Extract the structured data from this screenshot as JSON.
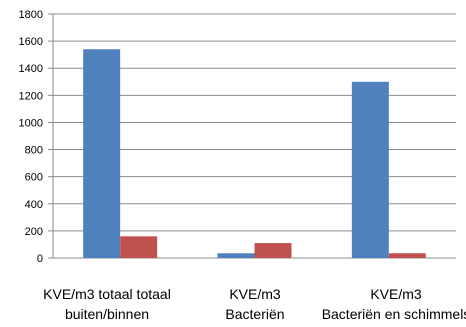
{
  "chart_data": {
    "type": "bar",
    "categories": [
      [
        "KVE/m3 totaal totaal",
        "buiten/binnen"
      ],
      [
        "KVE/m3",
        "Bacteriën"
      ],
      [
        "KVE/m3",
        "Bacteriën en schimmels"
      ]
    ],
    "series": [
      {
        "values": [
          1540,
          35,
          1300
        ],
        "color": "#4f81bd"
      },
      {
        "values": [
          160,
          110,
          35
        ],
        "color": "#c0504d"
      }
    ],
    "yticks": [
      "0",
      "200",
      "400",
      "600",
      "800",
      "1000",
      "1200",
      "1400",
      "1600",
      "1800"
    ],
    "ylim": [
      0,
      1800
    ],
    "grid": true,
    "legend": "none",
    "title": "",
    "xlabel": "",
    "ylabel": ""
  }
}
